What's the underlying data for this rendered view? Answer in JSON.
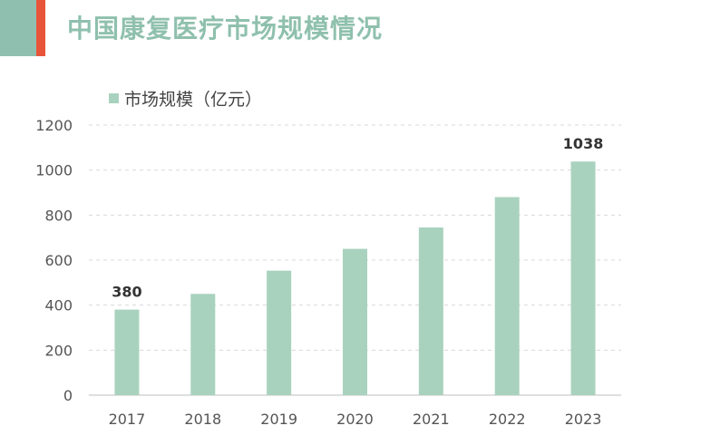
{
  "header": {
    "title": "中国康复医疗市场规模情况"
  },
  "colors": {
    "bar": "#a9d2be",
    "title": "#8fc0ae",
    "accent": "#e8543a",
    "grid": "#d9d9d9"
  },
  "chart_data": {
    "type": "bar",
    "title": "中国康复医疗市场规模情况",
    "categories": [
      "2017",
      "2018",
      "2019",
      "2020",
      "2021",
      "2022",
      "2023"
    ],
    "series": [
      {
        "name": "市场规模（亿元）",
        "values": [
          380,
          450,
          553,
          650,
          745,
          880,
          1038
        ]
      }
    ],
    "data_labels": [
      {
        "index": 0,
        "text": "380"
      },
      {
        "index": 6,
        "text": "1038"
      }
    ],
    "ylim": [
      0,
      1200
    ],
    "yticks": [
      0,
      200,
      400,
      600,
      800,
      1000,
      1200
    ],
    "xlabel": "",
    "ylabel": "",
    "grid": true,
    "legend_position": "top-left"
  }
}
